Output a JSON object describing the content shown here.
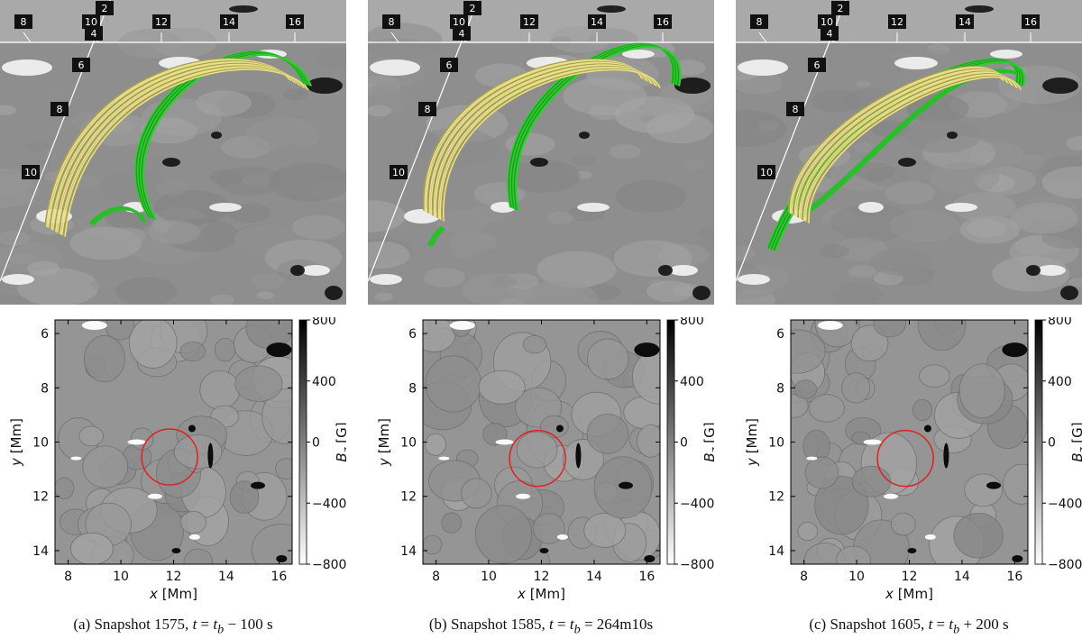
{
  "figure": {
    "panels": [
      {
        "id": "a",
        "caption_label": "(a) Snapshot 1575, ",
        "caption_t": "t",
        "caption_eq": " = ",
        "caption_tb": "t",
        "caption_sub": "b",
        "caption_rest": " − 100 s",
        "view3d_ticks_top": [
          "8",
          "10",
          "12",
          "14",
          "16"
        ],
        "view3d_ticks_slant": [
          "2",
          "4",
          "6",
          "8",
          "10"
        ],
        "circle_center": [
          11.85,
          10.55
        ]
      },
      {
        "id": "b",
        "caption_label": "(b) Snapshot 1585, ",
        "caption_t": "t",
        "caption_eq": " = ",
        "caption_tb": "t",
        "caption_sub": "b",
        "caption_rest": " = 264m10s",
        "view3d_ticks_top": [
          "8",
          "10",
          "12",
          "14",
          "16"
        ],
        "view3d_ticks_slant": [
          "2",
          "4",
          "6",
          "8",
          "10"
        ],
        "circle_center": [
          11.85,
          10.6
        ]
      },
      {
        "id": "c",
        "caption_label": "(c) Snapshot 1605, ",
        "caption_t": "t",
        "caption_eq": " = ",
        "caption_tb": "t",
        "caption_sub": "b",
        "caption_rest": " + 200 s",
        "view3d_ticks_top": [
          "8",
          "10",
          "12",
          "14",
          "16"
        ],
        "view3d_ticks_slant": [
          "2",
          "4",
          "6",
          "8",
          "10"
        ],
        "circle_center": [
          11.85,
          10.6
        ]
      }
    ],
    "map_axes": {
      "xlabel_var": "x",
      "xlabel_unit": " [Mm]",
      "ylabel_var": "y",
      "ylabel_unit": " [Mm]",
      "xticks": [
        "8",
        "10",
        "12",
        "14",
        "16"
      ],
      "yticks": [
        "6",
        "8",
        "10",
        "12",
        "14"
      ]
    },
    "colorbar": {
      "label_var": "B",
      "label_sub": "z",
      "label_unit": " [G]",
      "ticks": [
        "800",
        "400",
        "0",
        "−400",
        "−800"
      ]
    }
  },
  "chart_data": {
    "type": "heatmap",
    "panels": [
      "(a) Snapshot 1575",
      "(b) Snapshot 1585",
      "(c) Snapshot 1605"
    ],
    "xlabel": "x [Mm]",
    "ylabel": "y [Mm]",
    "xlim": [
      7.5,
      16.5
    ],
    "ylim": [
      5.5,
      14.5
    ],
    "y_inverted": true,
    "colorbar_label": "Bz [G]",
    "colorbar_range": [
      -800,
      800
    ],
    "colormap": "grayscale (white = -800, black = 800)",
    "annotation": "red circle near x≈11.9, y≈10.6 Mm",
    "colors": {
      "circle": "#e02020",
      "field_lines_yellow": "#e8e08a",
      "field_lines_green": "#22b422"
    }
  }
}
